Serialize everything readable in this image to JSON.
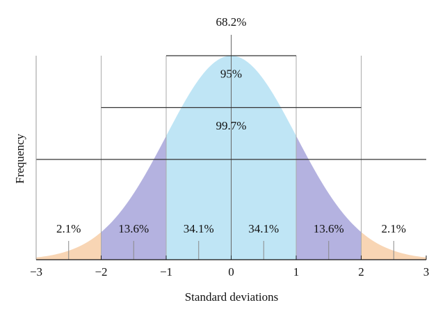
{
  "chart_data": {
    "type": "normal",
    "xlabel": "Standard deviations",
    "ylabel": "Frequency",
    "xlim": [
      -3,
      3
    ],
    "xticks": [
      {
        "value": -3,
        "label": "−3"
      },
      {
        "value": -2,
        "label": "−2"
      },
      {
        "value": -1,
        "label": "−1"
      },
      0,
      1,
      2,
      3
    ],
    "regions": [
      {
        "label": "2.1%",
        "value": 2.1,
        "from": -3,
        "to": -2,
        "color": "#f8d5b4"
      },
      {
        "label": "13.6%",
        "value": 13.6,
        "from": -2,
        "to": -1,
        "color": "#b4b2e0"
      },
      {
        "label": "34.1%",
        "value": 34.1,
        "from": -1,
        "to": 0,
        "color": "#bfe5f5"
      },
      {
        "label": "34.1%",
        "value": 34.1,
        "from": 0,
        "to": 1,
        "color": "#bfe5f5"
      },
      {
        "label": "13.6%",
        "value": 13.6,
        "from": 1,
        "to": 2,
        "color": "#b4b2e0"
      },
      {
        "label": "2.1%",
        "value": 2.1,
        "from": 2,
        "to": 3,
        "color": "#f8d5b4"
      }
    ],
    "intervals": [
      {
        "label": "68.2%",
        "value": 68.2,
        "from": -1,
        "to": 1
      },
      {
        "label": "95%",
        "value": 95,
        "from": -2,
        "to": 2
      },
      {
        "label": "99.7%",
        "value": 99.7,
        "from": -3,
        "to": 3
      }
    ]
  }
}
